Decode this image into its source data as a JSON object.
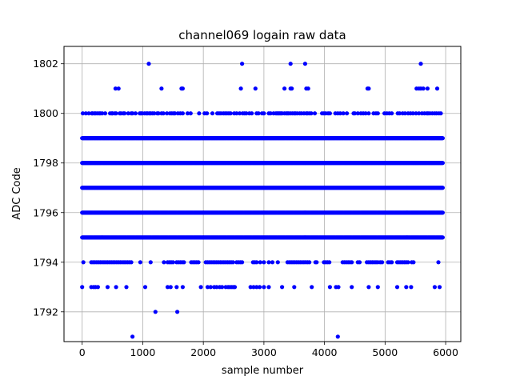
{
  "chart_data": {
    "type": "scatter",
    "title": "channel069 logain raw data",
    "xlabel": "sample number",
    "ylabel": "ADC Code",
    "xlim": [
      -300,
      6250
    ],
    "ylim": [
      1790.8,
      1802.7
    ],
    "xticks": [
      0,
      1000,
      2000,
      3000,
      4000,
      5000,
      6000
    ],
    "yticks": [
      1792,
      1794,
      1796,
      1798,
      1800,
      1802
    ],
    "grid": true,
    "color": "#0000ff",
    "n_samples": 6000,
    "dense_levels": [
      1795,
      1796,
      1797,
      1798,
      1799
    ],
    "sparse_levels": [
      {
        "y": 1794,
        "x": [
          20,
          150,
          180,
          210,
          240,
          270,
          300,
          330,
          360,
          390,
          420,
          450,
          480,
          510,
          540,
          570,
          600,
          630,
          660,
          690,
          720,
          750,
          780,
          810,
          960,
          1130,
          1350,
          1410,
          1440,
          1470,
          1500,
          1560,
          1590,
          1620,
          1650,
          1680,
          1800,
          1830,
          1860,
          1890,
          1920,
          2040,
          2070,
          2100,
          2130,
          2160,
          2190,
          2220,
          2250,
          2280,
          2310,
          2340,
          2370,
          2400,
          2430,
          2460,
          2490,
          2550,
          2580,
          2610,
          2640,
          2820,
          2850,
          2880,
          2940,
          3000,
          3080,
          3140,
          3230,
          3390,
          3420,
          3450,
          3480,
          3510,
          3540,
          3570,
          3600,
          3630,
          3660,
          3690,
          3720,
          3750,
          3850,
          3870,
          3990,
          4020,
          4050,
          4080,
          4300,
          4330,
          4360,
          4390,
          4420,
          4450,
          4550,
          4580,
          4700,
          4730,
          4760,
          4790,
          4820,
          4850,
          4880,
          4920,
          4950,
          5050,
          5080,
          5110,
          5200,
          5230,
          5260,
          5290,
          5320,
          5350,
          5380,
          5440,
          5470,
          5880
        ]
      },
      {
        "y": 1793,
        "x": [
          0,
          150,
          190,
          220,
          260,
          420,
          560,
          730,
          1040,
          1410,
          1460,
          1560,
          1660,
          1960,
          2070,
          2120,
          2180,
          2220,
          2270,
          2310,
          2370,
          2410,
          2440,
          2470,
          2500,
          2520,
          2780,
          2830,
          2880,
          2930,
          3000,
          3080,
          3300,
          3500,
          3790,
          4090,
          4190,
          4230,
          4450,
          4730,
          4880,
          5200,
          5350,
          5430,
          5820,
          5900
        ]
      },
      {
        "y": 1792,
        "x": [
          1210,
          1570
        ]
      },
      {
        "y": 1791,
        "x": [
          830,
          4220
        ]
      },
      {
        "y": 1800,
        "x": [
          10,
          60,
          110,
          160,
          170,
          200,
          220,
          250,
          280,
          300,
          330,
          380,
          460,
          490,
          500,
          540,
          560,
          620,
          640,
          680,
          700,
          760,
          810,
          830,
          880,
          950,
          970,
          990,
          1030,
          1060,
          1080,
          1110,
          1130,
          1160,
          1190,
          1240,
          1260,
          1310,
          1340,
          1400,
          1450,
          1480,
          1510,
          1530,
          1580,
          1620,
          1660,
          1740,
          1790,
          1930,
          2020,
          2060,
          2150,
          2230,
          2260,
          2290,
          2330,
          2360,
          2390,
          2420,
          2450,
          2510,
          2550,
          2600,
          2650,
          2680,
          2710,
          2760,
          2800,
          2880,
          2910,
          2970,
          3000,
          3080,
          3110,
          3160,
          3200,
          3220,
          3240,
          3260,
          3280,
          3300,
          3340,
          3370,
          3390,
          3410,
          3440,
          3470,
          3500,
          3520,
          3550,
          3590,
          3620,
          3660,
          3700,
          3720,
          3750,
          3780,
          3840,
          3960,
          3990,
          4020,
          4060,
          4090,
          4180,
          4220,
          4260,
          4310,
          4370,
          4480,
          4500,
          4550,
          4600,
          4640,
          4680,
          4730,
          4810,
          4850,
          4880,
          4990,
          5030,
          5070,
          5110,
          5210,
          5240,
          5290,
          5330,
          5380,
          5420,
          5460,
          5510,
          5560,
          5610,
          5650,
          5690,
          5710,
          5740,
          5780,
          5820,
          5850,
          5890,
          5920
        ]
      },
      {
        "y": 1801,
        "x": [
          550,
          600,
          1310,
          1640,
          1660,
          2620,
          2860,
          3340,
          3440,
          3460,
          3700,
          3730,
          4710,
          4730,
          5520,
          5560,
          5590,
          5630,
          5700,
          5860
        ]
      },
      {
        "y": 1802,
        "x": [
          1100,
          2640,
          3440,
          3680,
          5590
        ]
      }
    ]
  }
}
